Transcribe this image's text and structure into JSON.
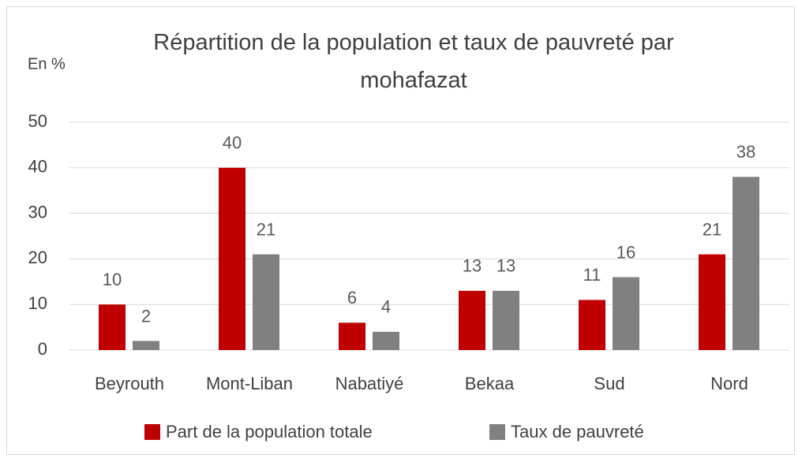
{
  "chart_data": {
    "type": "bar",
    "title": "Répartition de la population et taux de pauvreté par mohafazat",
    "y_axis_label": "En %",
    "categories": [
      "Beyrouth",
      "Mont-Liban",
      "Nabatiyé",
      "Bekaa",
      "Sud",
      "Nord"
    ],
    "series": [
      {
        "name": "Part de la population totale",
        "color": "#c00000",
        "values": [
          10,
          40,
          6,
          13,
          11,
          21
        ]
      },
      {
        "name": "Taux de pauvreté",
        "color": "#808080",
        "values": [
          2,
          21,
          4,
          13,
          16,
          38
        ]
      }
    ],
    "ylim": [
      0,
      50
    ],
    "yticks": [
      0,
      10,
      20,
      30,
      40,
      50
    ],
    "grid": true,
    "legend": "bottom"
  }
}
